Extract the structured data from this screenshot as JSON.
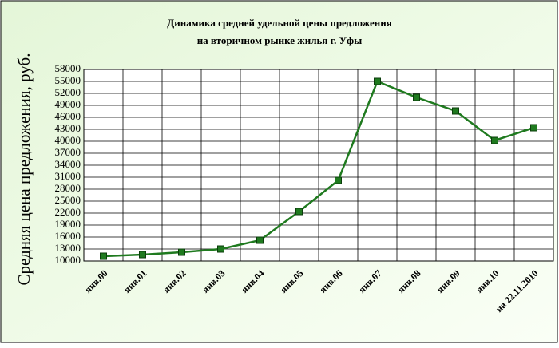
{
  "chart_data": {
    "type": "line",
    "title": [
      "Динамика средней удельной цены предложения",
      "на вторичном рынке жилья г. Уфы"
    ],
    "y_label": "Средняя цена предложения, руб.",
    "categories": [
      "янв.00",
      "янв.01",
      "янв.02",
      "янв.03",
      "янв.04",
      "янв.05",
      "янв.06",
      "янв.07",
      "янв.08",
      "янв.09",
      "янв.10",
      "на 22.11.2010"
    ],
    "series": [
      {
        "color": "#1f7a1f",
        "values": [
          11200,
          11600,
          12200,
          13000,
          15200,
          22400,
          30200,
          55000,
          51000,
          47600,
          40200,
          43400
        ]
      }
    ],
    "ylim": [
      10000,
      58000
    ],
    "yticks": [
      10000,
      13000,
      16000,
      19000,
      22000,
      25000,
      28000,
      31000,
      34000,
      37000,
      40000,
      43000,
      46000,
      49000,
      52000,
      55000,
      58000
    ],
    "grid": true
  }
}
